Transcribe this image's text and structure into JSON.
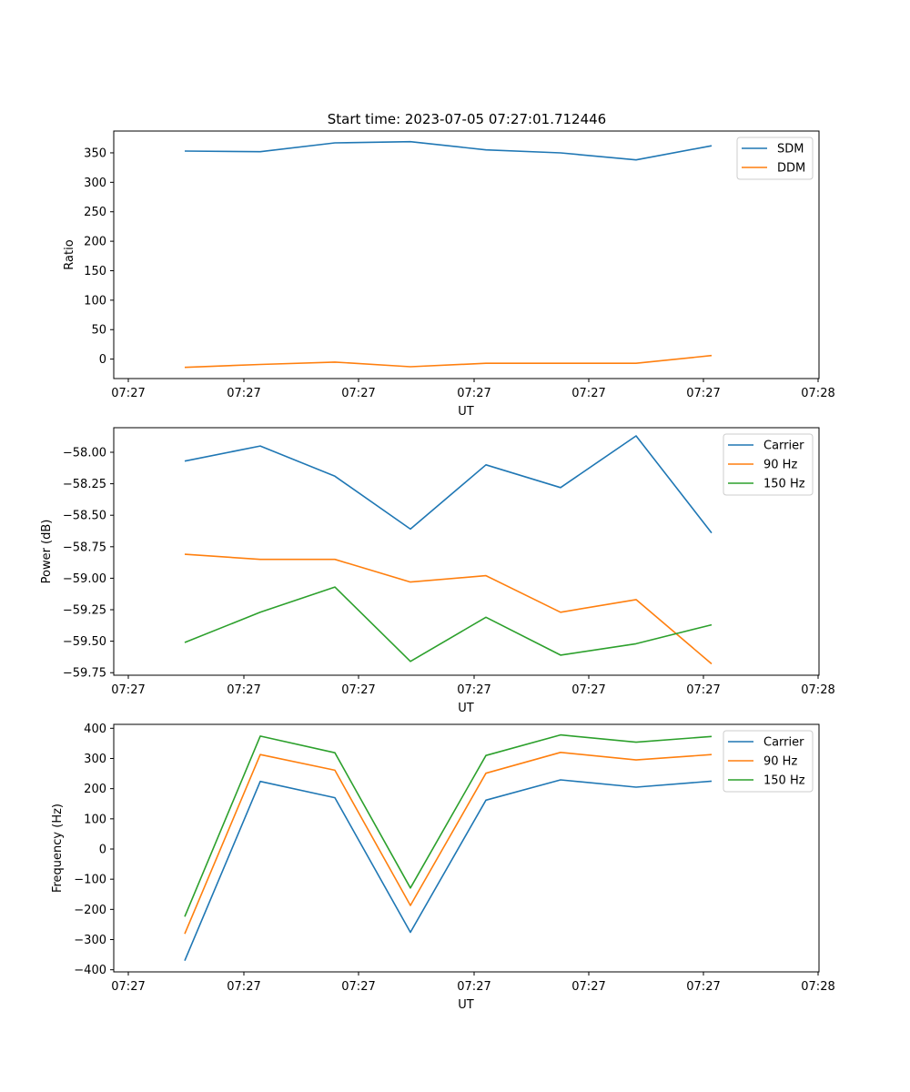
{
  "figure": {
    "title": "Start time: 2023-07-05 07:27:01.712446"
  },
  "chart_data": [
    {
      "type": "line",
      "title": "Start time: 2023-07-05 07:27:01.712446",
      "xlabel": "UT",
      "ylabel": "Ratio",
      "x_tick_labels": [
        "07:27",
        "07:27",
        "07:27",
        "07:27",
        "07:27",
        "07:27",
        "07:28"
      ],
      "y_ticks": [
        0,
        50,
        100,
        150,
        200,
        250,
        300,
        350
      ],
      "y_tick_labels": [
        "0",
        "50",
        "100",
        "150",
        "200",
        "250",
        "300",
        "350"
      ],
      "ylim": [
        -33,
        387
      ],
      "legend": "top-right",
      "series": [
        {
          "name": "SDM",
          "color": "#1f77b4",
          "values": [
            353,
            352,
            367,
            369,
            355,
            350,
            338,
            362
          ]
        },
        {
          "name": "DDM",
          "color": "#ff7f0e",
          "values": [
            -14,
            -9,
            -5,
            -13,
            -7,
            -7,
            -7,
            6
          ]
        }
      ]
    },
    {
      "type": "line",
      "title": "",
      "xlabel": "UT",
      "ylabel": "Power (dB)",
      "x_tick_labels": [
        "07:27",
        "07:27",
        "07:27",
        "07:27",
        "07:27",
        "07:27",
        "07:28"
      ],
      "y_ticks": [
        -58.0,
        -58.25,
        -58.5,
        -58.75,
        -59.0,
        -59.25,
        -59.5,
        -59.75
      ],
      "y_tick_labels": [
        "−58.00",
        "−58.25",
        "−58.50",
        "−58.75",
        "−59.00",
        "−59.25",
        "−59.50",
        "−59.75"
      ],
      "ylim": [
        -59.77,
        -57.805
      ],
      "legend": "top-right",
      "series": [
        {
          "name": "Carrier",
          "color": "#1f77b4",
          "values": [
            -58.07,
            -57.95,
            -58.19,
            -58.61,
            -58.1,
            -58.28,
            -57.87,
            -58.64
          ]
        },
        {
          "name": "90 Hz",
          "color": "#ff7f0e",
          "values": [
            -58.81,
            -58.85,
            -58.85,
            -59.03,
            -58.98,
            -59.27,
            -59.17,
            -59.68
          ]
        },
        {
          "name": "150 Hz",
          "color": "#2ca02c",
          "values": [
            -59.51,
            -59.27,
            -59.07,
            -59.66,
            -59.31,
            -59.61,
            -59.52,
            -59.37
          ]
        }
      ]
    },
    {
      "type": "line",
      "title": "",
      "xlabel": "UT",
      "ylabel": "Frequency (Hz)",
      "x_tick_labels": [
        "07:27",
        "07:27",
        "07:27",
        "07:27",
        "07:27",
        "07:27",
        "07:28"
      ],
      "y_ticks": [
        -400,
        -300,
        -200,
        -100,
        0,
        100,
        200,
        300,
        400
      ],
      "y_tick_labels": [
        "−400",
        "−300",
        "−200",
        "−100",
        "0",
        "100",
        "200",
        "300",
        "400"
      ],
      "ylim": [
        -407,
        413
      ],
      "legend": "top-right",
      "series": [
        {
          "name": "Carrier",
          "color": "#1f77b4",
          "values": [
            -370,
            224,
            170,
            -276,
            162,
            229,
            205,
            225
          ]
        },
        {
          "name": "90 Hz",
          "color": "#ff7f0e",
          "values": [
            -281,
            313,
            261,
            -187,
            251,
            320,
            295,
            313
          ]
        },
        {
          "name": "150 Hz",
          "color": "#2ca02c",
          "values": [
            -224,
            374,
            319,
            -129,
            310,
            378,
            354,
            373
          ]
        }
      ]
    }
  ]
}
